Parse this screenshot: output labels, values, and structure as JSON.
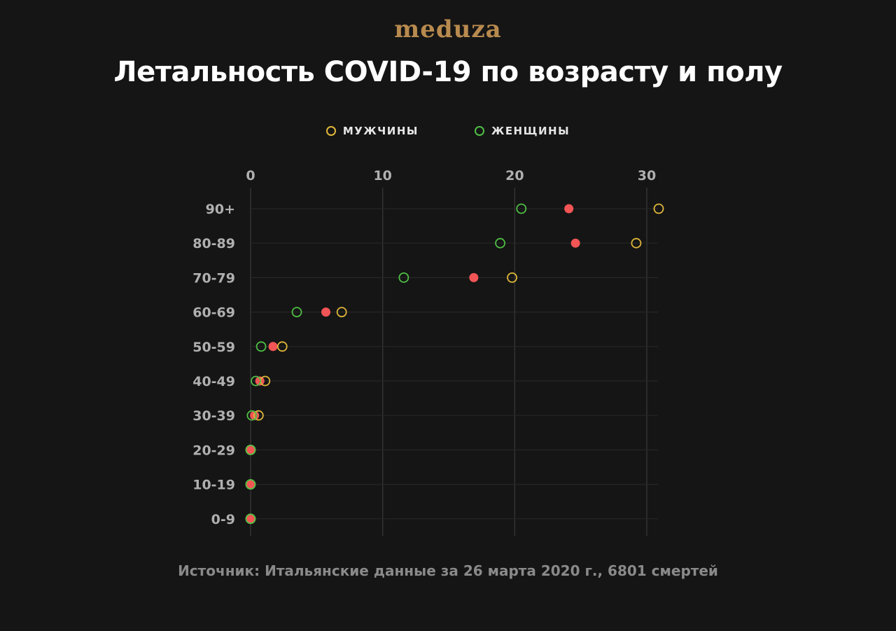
{
  "header": {
    "brand": "meduza",
    "title": "Летальность COVID-19 по возрасту и полу"
  },
  "legend": [
    {
      "label": "МУЖЧИНЫ",
      "color": "#e0b73a"
    },
    {
      "label": "ЖЕНЩИНЫ",
      "color": "#4fbf45"
    }
  ],
  "footer": {
    "source": "Источник: Итальянские данные за 26 марта 2020 г., 6801 смертей"
  },
  "colors": {
    "men": "#e0b73a",
    "women": "#4fbf45",
    "overall": "#f25555",
    "grid": "#333333",
    "tick_text": "#b0b0b0"
  },
  "chart_data": {
    "type": "scatter",
    "title": "Летальность COVID-19 по возрасту и полу",
    "xlabel": "",
    "ylabel": "",
    "x_ticks": [
      0,
      10,
      20,
      30
    ],
    "xlim": [
      0,
      30
    ],
    "categories": [
      "90+",
      "80-89",
      "70-79",
      "60-69",
      "50-59",
      "40-49",
      "30-39",
      "20-29",
      "10-19",
      "0-9"
    ],
    "series": [
      {
        "name": "МУЖЧИНЫ",
        "marker": "open-circle",
        "color": "#e0b73a",
        "values": [
          30.9,
          29.2,
          19.8,
          6.9,
          2.4,
          1.1,
          0.6,
          0,
          0,
          0
        ]
      },
      {
        "name": "ЖЕНЩИНЫ",
        "marker": "open-circle",
        "color": "#4fbf45",
        "values": [
          20.5,
          18.9,
          11.6,
          3.5,
          0.8,
          0.4,
          0.1,
          0,
          0,
          0
        ]
      },
      {
        "marker": "filled-circle",
        "color": "#f25555",
        "values": [
          24.1,
          24.6,
          16.9,
          5.7,
          1.7,
          0.7,
          0.3,
          0,
          0,
          0
        ]
      }
    ],
    "grid": true,
    "legend_position": "top-center"
  }
}
